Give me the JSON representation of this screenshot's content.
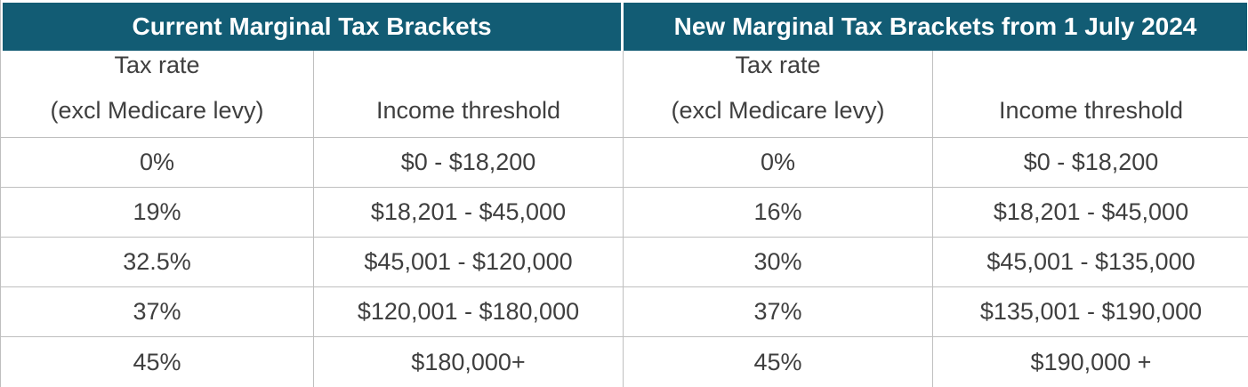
{
  "colors": {
    "header_bg": "#125c74",
    "header_text": "#ffffff",
    "grid_line": "#bfbfbf",
    "body_text": "#3f3f3f"
  },
  "table": {
    "left": {
      "title": "Current Marginal Tax Brackets",
      "rate_header_line1": "Tax rate",
      "rate_header_line2": "(excl Medicare levy)",
      "threshold_header": "Income threshold",
      "rows": [
        {
          "rate": "0%",
          "threshold": "$0 - $18,200"
        },
        {
          "rate": "19%",
          "threshold": "$18,201 - $45,000"
        },
        {
          "rate": "32.5%",
          "threshold": "$45,001 - $120,000"
        },
        {
          "rate": "37%",
          "threshold": "$120,001 - $180,000"
        },
        {
          "rate": "45%",
          "threshold": "$180,000+"
        }
      ]
    },
    "right": {
      "title": "New Marginal Tax Brackets from 1 July 2024",
      "rate_header_line1": "Tax rate",
      "rate_header_line2": "(excl Medicare levy)",
      "threshold_header": "Income threshold",
      "rows": [
        {
          "rate": "0%",
          "threshold": "$0 - $18,200"
        },
        {
          "rate": "16%",
          "threshold": "$18,201 - $45,000"
        },
        {
          "rate": "30%",
          "threshold": "$45,001 - $135,000"
        },
        {
          "rate": "37%",
          "threshold": "$135,001 - $190,000"
        },
        {
          "rate": "45%",
          "threshold": "$190,000 +"
        }
      ]
    }
  }
}
